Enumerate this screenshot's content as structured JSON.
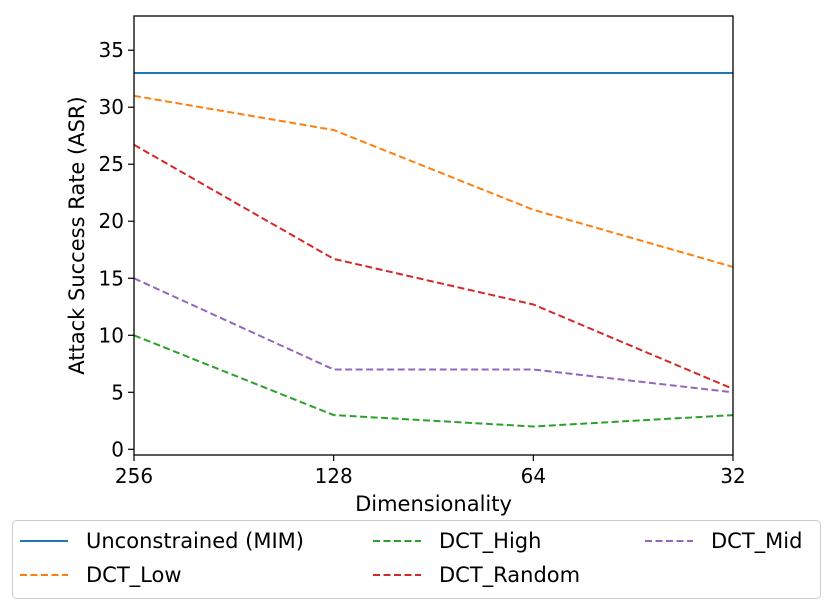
{
  "chart_data": {
    "type": "line",
    "title": "",
    "xlabel": "Dimensionality",
    "ylabel": "Attack Success Rate (ASR)",
    "categories": [
      "256",
      "128",
      "64",
      "32"
    ],
    "ylim": [
      -0.5,
      38
    ],
    "yticks": [
      0,
      5,
      10,
      15,
      20,
      25,
      30,
      35
    ],
    "grid": false,
    "legend_placement": "bottom",
    "series": [
      {
        "name": "Unconstrained (MIM)",
        "values": [
          33,
          33,
          33,
          33
        ],
        "color": "#1f77b4",
        "style": "solid"
      },
      {
        "name": "DCT_Low",
        "values": [
          31,
          28,
          21,
          16
        ],
        "color": "#ff7f0e",
        "style": "dashed"
      },
      {
        "name": "DCT_High",
        "values": [
          10,
          3,
          2,
          3
        ],
        "color": "#2ca02c",
        "style": "dashed"
      },
      {
        "name": "DCT_Random",
        "values": [
          26.7,
          16.7,
          12.7,
          5.3
        ],
        "color": "#d62728",
        "style": "dashed"
      },
      {
        "name": "DCT_Mid",
        "values": [
          15,
          7,
          7,
          5
        ],
        "color": "#9467bd",
        "style": "dashed"
      }
    ]
  }
}
